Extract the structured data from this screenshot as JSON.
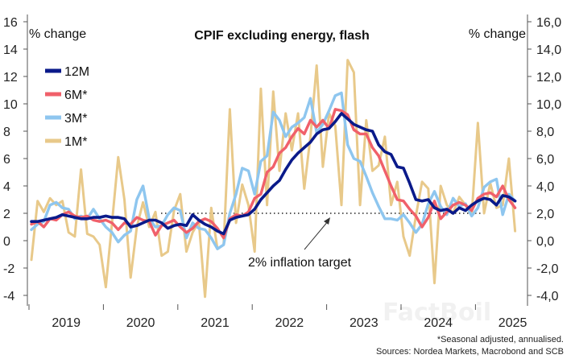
{
  "chart_data": {
    "type": "line",
    "title": "CPIF excluding energy, flash",
    "ylabel_left": "% change",
    "ylabel_right": "% change",
    "ylim": [
      -4,
      16
    ],
    "yticks_left": [
      "16",
      "14",
      "12",
      "10",
      "8",
      "6",
      "4",
      "2",
      "0",
      "-2",
      "-4"
    ],
    "yticks_right": [
      "16,0",
      "14,0",
      "12,0",
      "10,0",
      "8,0",
      "6,0",
      "4,0",
      "2,0",
      "0,0",
      "-2,0",
      "-4,0"
    ],
    "xlabels": [
      "2019",
      "2020",
      "2021",
      "2022",
      "2023",
      "2024",
      "2025"
    ],
    "x_start": "2019-01",
    "annotation": "2% inflation target",
    "reference_line": 2,
    "footnote": "*Seasonal adjusted, annualised.",
    "source": "Sources: Nordea Markets, Macrobond and SCB",
    "watermark": "FactBoil",
    "series": [
      {
        "name": "12M",
        "color": "#0a1a8a",
        "values": [
          1.4,
          1.4,
          1.5,
          1.6,
          1.7,
          1.9,
          1.8,
          1.7,
          1.6,
          1.6,
          1.7,
          1.7,
          1.8,
          1.7,
          1.7,
          1.6,
          1.0,
          1.1,
          1.3,
          1.5,
          1.5,
          1.3,
          0.9,
          1.1,
          1.2,
          1.1,
          1.9,
          1.5,
          1.2,
          1.0,
          0.7,
          0.5,
          1.5,
          1.7,
          1.8,
          1.9,
          2.3,
          3.0,
          3.5,
          4.0,
          4.4,
          5.2,
          5.9,
          6.4,
          6.8,
          7.2,
          7.8,
          8.1,
          8.2,
          8.7,
          9.3,
          8.9,
          8.5,
          8.3,
          8.1,
          8.0,
          7.0,
          6.5,
          6.3,
          5.4,
          5.3,
          4.2,
          3.0,
          2.9,
          3.0,
          2.4,
          2.2,
          2.3,
          2.0,
          2.4,
          2.2,
          2.6,
          2.9,
          3.1,
          3.0,
          2.6,
          3.3,
          3.2,
          2.9
        ]
      },
      {
        "name": "6M*",
        "color": "#f0606a",
        "values": [
          1.2,
          1.4,
          1.0,
          1.6,
          1.5,
          1.9,
          2.1,
          1.8,
          1.7,
          1.8,
          1.5,
          1.4,
          1.5,
          1.3,
          0.8,
          1.3,
          1.2,
          1.7,
          1.5,
          1.4,
          0.4,
          1.1,
          1.3,
          1.5,
          1.0,
          0.6,
          0.9,
          1.4,
          1.6,
          1.4,
          0.9,
          0.2,
          1.6,
          1.9,
          1.8,
          2.1,
          3.1,
          3.4,
          5.0,
          5.4,
          6.4,
          6.8,
          7.6,
          8.2,
          7.8,
          8.8,
          8.3,
          8.8,
          8.2,
          9.6,
          9.5,
          9.2,
          8.1,
          7.8,
          7.8,
          6.8,
          6.2,
          5.1,
          4.0,
          3.0,
          2.9,
          2.3,
          1.8,
          1.0,
          1.7,
          2.9,
          1.6,
          2.1,
          2.6,
          2.8,
          2.6,
          2.2,
          3.1,
          3.4,
          3.5,
          3.2,
          4.0,
          3.0,
          2.4
        ]
      },
      {
        "name": "3M*",
        "color": "#8ec6ef",
        "values": [
          0.8,
          1.2,
          1.4,
          2.6,
          2.8,
          2.4,
          2.3,
          1.6,
          1.8,
          1.6,
          2.3,
          1.6,
          1.0,
          0.6,
          -0.1,
          0.4,
          0.7,
          3.0,
          4.0,
          1.6,
          1.0,
          1.1,
          1.9,
          2.4,
          2.2,
          0.2,
          1.3,
          0.9,
          0.8,
          0.2,
          -0.6,
          -0.3,
          2.0,
          3.4,
          5.3,
          5.1,
          3.4,
          5.8,
          6.2,
          9.4,
          8.8,
          7.6,
          8.3,
          8.6,
          9.0,
          10.4,
          7.9,
          8.5,
          9.5,
          10.6,
          10.8,
          7.0,
          6.0,
          5.8,
          4.7,
          3.5,
          2.5,
          1.6,
          1.6,
          1.5,
          1.9,
          1.3,
          0.6,
          1.2,
          2.7,
          3.6,
          2.5,
          1.9,
          3.1,
          2.5,
          2.7,
          1.8,
          2.4,
          3.9,
          4.3,
          4.5,
          1.9,
          3.4,
          2.9
        ]
      },
      {
        "name": "1M*",
        "color": "#e8c98a",
        "values": [
          -1.4,
          2.9,
          2.1,
          3.1,
          2.6,
          2.9,
          0.6,
          0.3,
          5.2,
          0.5,
          0.3,
          -0.3,
          -3.4,
          1.3,
          6.1,
          3.0,
          -2.7,
          1.0,
          2.8,
          1.0,
          2.1,
          -1.1,
          -0.8,
          2.2,
          3.4,
          -0.8,
          0.6,
          1.4,
          -4.1,
          2.4,
          -0.6,
          -0.3,
          9.6,
          1.3,
          4.1,
          2.6,
          -0.8,
          11.1,
          2.6,
          10.9,
          5.1,
          9.3,
          6.6,
          9.3,
          3.8,
          7.6,
          12.8,
          5.4,
          9.3,
          8.4,
          2.6,
          13.2,
          12.3,
          2.6,
          8.8,
          5.1,
          5.5,
          7.6,
          2.6,
          4.3,
          0.3,
          -1.1,
          1.8,
          4.3,
          3.8,
          -3.1,
          4.0,
          2.6,
          2.0,
          3.2,
          2.6,
          1.8,
          8.6,
          2.0,
          4.2,
          2.4,
          2.6,
          6.0,
          0.7
        ]
      }
    ]
  }
}
